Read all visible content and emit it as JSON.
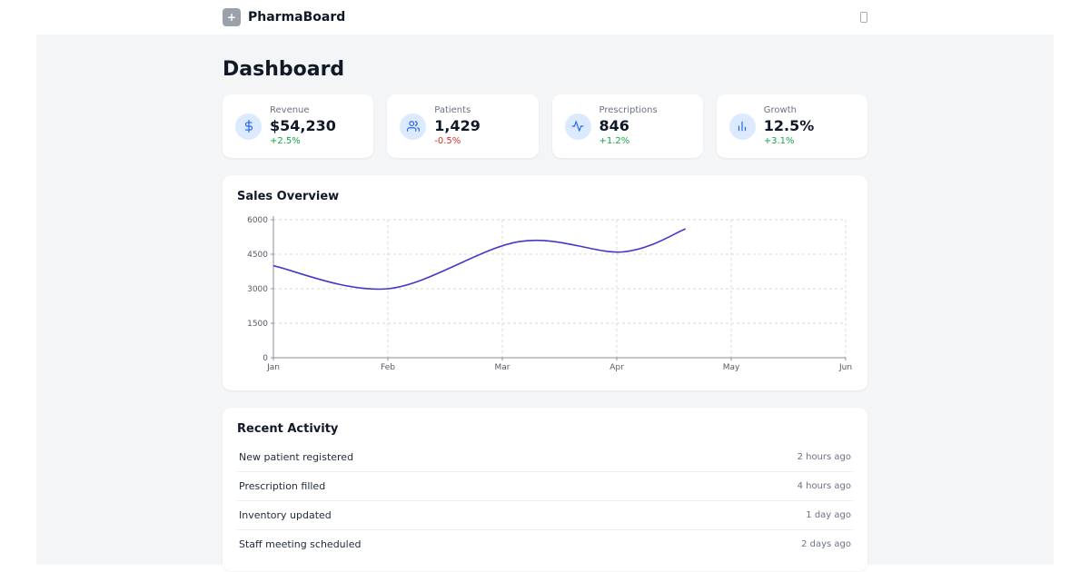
{
  "topbar": {
    "app_name": "PharmaBoard"
  },
  "page": {
    "title": "Dashboard"
  },
  "stats": {
    "cards": [
      {
        "label": "Revenue",
        "value": "$54,230",
        "change": "+2.5%",
        "trend": "up",
        "icon": "dollar-icon"
      },
      {
        "label": "Patients",
        "value": "1,429",
        "change": "-0.5%",
        "trend": "down",
        "icon": "users-icon"
      },
      {
        "label": "Prescriptions",
        "value": "846",
        "change": "+1.2%",
        "trend": "up",
        "icon": "activity-icon"
      },
      {
        "label": "Growth",
        "value": "12.5%",
        "change": "+3.1%",
        "trend": "up",
        "icon": "bar-chart-icon"
      }
    ],
    "colors": {
      "up": "#16a34a",
      "down": "#dc2626",
      "icon_bg": "#dbeafe",
      "icon": "#2563eb"
    }
  },
  "chart_data": {
    "type": "line",
    "title": "Sales Overview",
    "x_tick_labels": [
      "Jan",
      "Feb",
      "Mar",
      "Apr",
      "May",
      "Jun"
    ],
    "y_ticks": [
      0,
      1500,
      3000,
      4500,
      6000
    ],
    "xlim": [
      0,
      5
    ],
    "ylim": [
      0,
      6000
    ],
    "grid": "dashed",
    "legend": "none",
    "series": [
      {
        "name": "Sales",
        "color": "#4338ca",
        "points": [
          {
            "x": 0,
            "v": 4000
          },
          {
            "x": 1,
            "v": 3000
          },
          {
            "x": 2.15,
            "v": 5050
          },
          {
            "x": 3.05,
            "v": 4600
          },
          {
            "x": 3.6,
            "v": 5600
          }
        ]
      }
    ]
  },
  "activity": {
    "title": "Recent Activity",
    "items": [
      {
        "text": "New patient registered",
        "time": "2 hours ago"
      },
      {
        "text": "Prescription filled",
        "time": "4 hours ago"
      },
      {
        "text": "Inventory updated",
        "time": "1 day ago"
      },
      {
        "text": "Staff meeting scheduled",
        "time": "2 days ago"
      }
    ]
  }
}
